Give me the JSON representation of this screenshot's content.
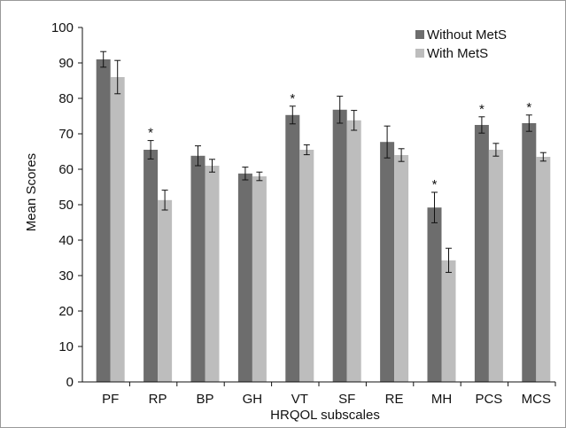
{
  "chart_data": {
    "type": "bar",
    "xlabel": "HRQOL subscales",
    "ylabel": "Mean Scores",
    "ylim": [
      0,
      100
    ],
    "yticks": [
      0,
      10,
      20,
      30,
      40,
      50,
      60,
      70,
      80,
      90,
      100
    ],
    "grid": false,
    "legend_position": "top-right",
    "categories": [
      "PF",
      "RP",
      "BP",
      "GH",
      "VT",
      "SF",
      "RE",
      "MH",
      "PCS",
      "MCS"
    ],
    "series": [
      {
        "name": "Without MetS",
        "color": "#6d6d6d",
        "values": [
          91,
          65.5,
          63.8,
          58.8,
          75.3,
          76.8,
          67.7,
          49.2,
          72.5,
          73
        ],
        "errors": [
          2.2,
          2.6,
          2.8,
          1.8,
          2.5,
          3.8,
          4.5,
          4.3,
          2.3,
          2.3
        ]
      },
      {
        "name": "With MetS",
        "color": "#bdbdbd",
        "values": [
          86,
          51.3,
          61,
          58,
          65.5,
          73.8,
          64,
          34.3,
          65.5,
          63.5
        ],
        "errors": [
          4.7,
          2.8,
          1.8,
          1.2,
          1.4,
          2.8,
          1.8,
          3.4,
          1.8,
          1.2
        ]
      }
    ],
    "significance": {
      "marker": "*",
      "categories": [
        "RP",
        "VT",
        "MH",
        "PCS",
        "MCS"
      ]
    }
  }
}
